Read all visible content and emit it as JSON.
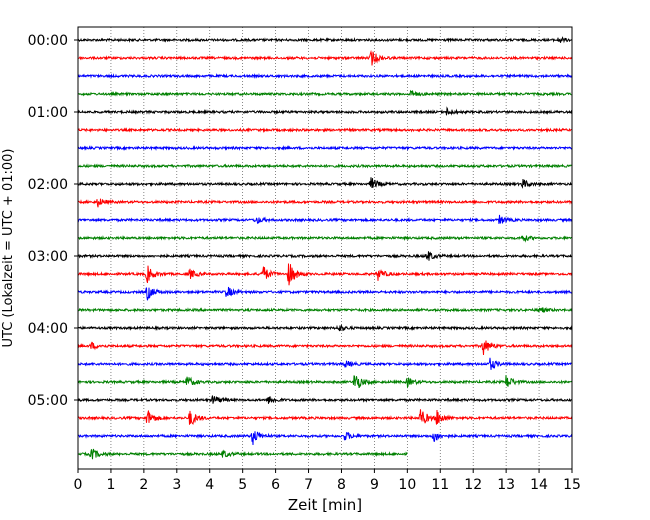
{
  "chart_data": {
    "type": "line",
    "xlabel": "Zeit  [min]",
    "ylabel": "UTC (Lokalzeit = UTC + 01:00)",
    "xlim": [
      0,
      15
    ],
    "x_ticks": [
      "0",
      "1",
      "2",
      "3",
      "4",
      "5",
      "6",
      "7",
      "8",
      "9",
      "10",
      "11",
      "12",
      "13",
      "14",
      "15"
    ],
    "y_tick_labels": [
      "00:00",
      "01:00",
      "02:00",
      "03:00",
      "04:00",
      "05:00"
    ],
    "trace_interval_min": 15,
    "trace_colors": [
      "#000000",
      "#ff0000",
      "#0000ff",
      "#008000"
    ],
    "grid": "vertical-dotted",
    "traces": [
      {
        "time": "00:00",
        "color": "#000000",
        "end_min": 15,
        "events": [
          [
            14.6,
            0.35
          ]
        ]
      },
      {
        "time": "00:15",
        "color": "#ff0000",
        "end_min": 15,
        "events": [
          [
            8.9,
            0.9
          ]
        ]
      },
      {
        "time": "00:30",
        "color": "#0000ff",
        "end_min": 15,
        "events": []
      },
      {
        "time": "00:45",
        "color": "#008000",
        "end_min": 15,
        "events": [
          [
            10.1,
            0.4
          ]
        ]
      },
      {
        "time": "01:00",
        "color": "#000000",
        "end_min": 15,
        "events": [
          [
            11.2,
            0.4
          ]
        ]
      },
      {
        "time": "01:15",
        "color": "#ff0000",
        "end_min": 15,
        "events": []
      },
      {
        "time": "01:30",
        "color": "#0000ff",
        "end_min": 15,
        "events": []
      },
      {
        "time": "01:45",
        "color": "#008000",
        "end_min": 15,
        "events": []
      },
      {
        "time": "02:00",
        "color": "#000000",
        "end_min": 15,
        "events": [
          [
            8.9,
            0.7
          ],
          [
            13.5,
            0.5
          ]
        ]
      },
      {
        "time": "02:15",
        "color": "#ff0000",
        "end_min": 15,
        "events": [
          [
            0.6,
            0.5
          ]
        ]
      },
      {
        "time": "02:30",
        "color": "#0000ff",
        "end_min": 15,
        "events": [
          [
            5.4,
            0.4
          ],
          [
            12.8,
            0.5
          ]
        ]
      },
      {
        "time": "02:45",
        "color": "#008000",
        "end_min": 15,
        "events": [
          [
            13.5,
            0.35
          ]
        ]
      },
      {
        "time": "03:00",
        "color": "#000000",
        "end_min": 15,
        "events": [
          [
            10.6,
            0.6
          ]
        ]
      },
      {
        "time": "03:15",
        "color": "#ff0000",
        "end_min": 15,
        "events": [
          [
            2.1,
            1.0
          ],
          [
            3.4,
            0.5
          ],
          [
            5.6,
            1.0
          ],
          [
            6.4,
            1.4
          ],
          [
            9.1,
            0.7
          ]
        ]
      },
      {
        "time": "03:30",
        "color": "#0000ff",
        "end_min": 15,
        "events": [
          [
            2.1,
            0.9
          ],
          [
            4.5,
            0.7
          ]
        ]
      },
      {
        "time": "03:45",
        "color": "#008000",
        "end_min": 15,
        "events": [
          [
            14.0,
            0.35
          ]
        ]
      },
      {
        "time": "04:00",
        "color": "#000000",
        "end_min": 15,
        "events": [
          [
            7.9,
            0.4
          ]
        ]
      },
      {
        "time": "04:15",
        "color": "#ff0000",
        "end_min": 15,
        "events": [
          [
            0.4,
            0.4
          ],
          [
            12.3,
            1.0
          ]
        ]
      },
      {
        "time": "04:30",
        "color": "#0000ff",
        "end_min": 15,
        "events": [
          [
            8.1,
            0.4
          ],
          [
            12.5,
            0.7
          ]
        ]
      },
      {
        "time": "04:45",
        "color": "#008000",
        "end_min": 15,
        "events": [
          [
            3.3,
            0.7
          ],
          [
            8.4,
            1.2
          ],
          [
            10.0,
            0.5
          ],
          [
            13.0,
            0.8
          ]
        ]
      },
      {
        "time": "05:00",
        "color": "#000000",
        "end_min": 15,
        "events": [
          [
            4.1,
            0.6
          ],
          [
            5.8,
            0.5
          ]
        ]
      },
      {
        "time": "05:15",
        "color": "#ff0000",
        "end_min": 15,
        "events": [
          [
            2.1,
            1.0
          ],
          [
            3.4,
            1.0
          ],
          [
            10.4,
            1.1
          ],
          [
            10.9,
            0.9
          ]
        ]
      },
      {
        "time": "05:30",
        "color": "#0000ff",
        "end_min": 15,
        "events": [
          [
            5.3,
            1.0
          ],
          [
            8.1,
            0.5
          ],
          [
            10.8,
            0.7
          ]
        ]
      },
      {
        "time": "05:45",
        "color": "#008000",
        "end_min": 10,
        "events": [
          [
            0.4,
            0.7
          ],
          [
            4.4,
            0.4
          ]
        ]
      }
    ]
  }
}
